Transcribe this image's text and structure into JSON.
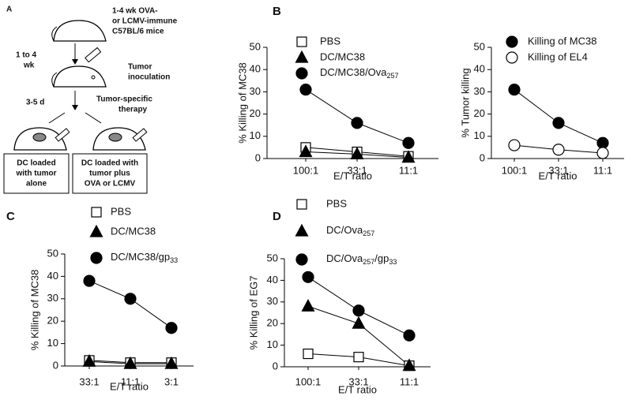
{
  "diagram": {
    "panel_label": "A",
    "mice_label": [
      "1-4 wk OVA-",
      "or LCMV-immune",
      "C57BL/6 mice"
    ],
    "interval_1": [
      "1 to 4",
      "wk"
    ],
    "inoculation": [
      "Tumor",
      "inoculation"
    ],
    "interval_2": "3-5 d",
    "therapy": [
      "Tumor-specific",
      "therapy"
    ],
    "box_left": [
      "DC loaded",
      "with tumor",
      "alone"
    ],
    "box_right": [
      "DC loaded with",
      "tumor plus",
      "OVA or LCMV"
    ]
  },
  "chart_data": [
    {
      "type": "line",
      "panel_label": "B",
      "ylabel": "% Killing of MC38",
      "xlabel": "E/T ratio",
      "categories": [
        "100:1",
        "33:1",
        "11:1"
      ],
      "ylim": [
        0,
        50
      ],
      "yticks": [
        0,
        10,
        20,
        30,
        40,
        50
      ],
      "series": [
        {
          "name": "PBS",
          "color": "#000000",
          "marker": "square",
          "marker_fill": "#ffffff",
          "values": [
            5,
            3,
            1
          ]
        },
        {
          "name": "DC/MC38",
          "color": "#000000",
          "marker": "triangle",
          "marker_fill": "#000000",
          "values": [
            3,
            2,
            0.5
          ]
        },
        {
          "name": "DC/MC38/Ova257",
          "color": "#000000",
          "marker": "circle",
          "marker_fill": "#000000",
          "values": [
            31,
            16,
            7
          ]
        }
      ]
    },
    {
      "type": "line",
      "ylabel": "% Tumor killing",
      "xlabel": "E/T ratio",
      "categories": [
        "100:1",
        "33:1",
        "11:1"
      ],
      "ylim": [
        0,
        50
      ],
      "yticks": [
        0,
        10,
        20,
        30,
        40,
        50
      ],
      "series": [
        {
          "name": "Killing of MC38",
          "color": "#000000",
          "marker": "circle",
          "marker_fill": "#000000",
          "values": [
            31,
            16,
            7
          ]
        },
        {
          "name": "Killing of EL4",
          "color": "#000000",
          "marker": "circle",
          "marker_fill": "#ffffff",
          "values": [
            6,
            4,
            2.5
          ]
        }
      ]
    },
    {
      "type": "line",
      "panel_label": "C",
      "ylabel": "% Killing of MC38",
      "xlabel": "E/T ratio",
      "categories": [
        "33:1",
        "11:1",
        "3:1"
      ],
      "ylim": [
        0,
        50
      ],
      "yticks": [
        0,
        10,
        20,
        30,
        40,
        50
      ],
      "series": [
        {
          "name": "PBS",
          "color": "#000000",
          "marker": "square",
          "marker_fill": "#ffffff",
          "values": [
            2.5,
            1.5,
            1.5
          ]
        },
        {
          "name": "DC/MC38",
          "color": "#000000",
          "marker": "triangle",
          "marker_fill": "#000000",
          "values": [
            2,
            1,
            1
          ]
        },
        {
          "name": "DC/MC38/gp33",
          "color": "#000000",
          "marker": "circle",
          "marker_fill": "#000000",
          "values": [
            38,
            30,
            17
          ]
        }
      ]
    },
    {
      "type": "line",
      "panel_label": "D",
      "ylabel": "% Killing of EG7",
      "xlabel": "E/T ratio",
      "categories": [
        "100:1",
        "33:1",
        "11:1"
      ],
      "ylim": [
        0,
        50
      ],
      "yticks": [
        0,
        10,
        20,
        30,
        40,
        50
      ],
      "series": [
        {
          "name": "PBS",
          "color": "#000000",
          "marker": "square",
          "marker_fill": "#ffffff",
          "values": [
            6,
            4.5,
            0.5
          ]
        },
        {
          "name": "DC/Ova257",
          "color": "#000000",
          "marker": "triangle",
          "marker_fill": "#000000",
          "values": [
            28,
            20,
            0.5
          ]
        },
        {
          "name": "DC/Ova257/gp33",
          "color": "#000000",
          "marker": "circle",
          "marker_fill": "#000000",
          "values": [
            41.5,
            26,
            14.5
          ]
        }
      ]
    }
  ]
}
